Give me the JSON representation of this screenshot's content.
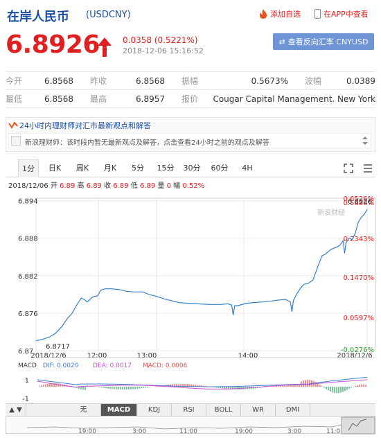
{
  "header": {
    "title": "在岸人民币",
    "code": "(USDCNY)",
    "add_watchlist": "添加自选",
    "open_in_app": "在APP中查看"
  },
  "quote": {
    "price": "6.8926",
    "change": "0.0358 (0.5221%)",
    "time": "2018-12-06 15:16:52",
    "reverse_button": "查看反向汇率 CNYUSD"
  },
  "info": {
    "rows": [
      [
        {
          "label": "今开",
          "value": "6.8568"
        },
        {
          "label": "昨收",
          "value": "6.8568"
        },
        {
          "label": "振幅",
          "value": "0.5673%"
        },
        {
          "label": "波幅",
          "value": "0.0389"
        }
      ],
      [
        {
          "label": "最低",
          "value": "6.8568"
        },
        {
          "label": "最高",
          "value": "6.8957"
        },
        {
          "label": "报价",
          "value": "Cougar Capital Management. New York"
        }
      ]
    ]
  },
  "opinion": {
    "title": "24小时内理财师对汇市最新观点和解答",
    "text": "新浪理财师：该时段内暂无最新观点及解答，点击查看24小时之前的观点及解答"
  },
  "tabs": [
    "1分",
    "日K",
    "周K",
    "月K",
    "5分",
    "15分",
    "30分",
    "60分",
    "4H"
  ],
  "active_tab": "1分",
  "meta": {
    "date": "2018/12/06",
    "open_label": "开",
    "open": "6.89",
    "high_label": "高",
    "high": "6.89",
    "close_label": "收",
    "close": "6.89",
    "low_label": "低",
    "low": "6.89",
    "vol_label": "量",
    "vol": "0",
    "amp_label": "幅",
    "amp": "0.52%"
  },
  "chart_data": {
    "type": "line",
    "y_ticks": [
      "6.894",
      "6.888",
      "6.882",
      "6.876",
      "6.87"
    ],
    "y_tick_values": [
      6.894,
      6.888,
      6.882,
      6.876,
      6.87
    ],
    "right_ticks": [
      "0.6526%",
      "0.5686%",
      "0.2343%",
      "0.1470%",
      "0.0597%",
      "-0.0276%"
    ],
    "right_tick_values": [
      0.6526,
      0.5686,
      0.2343,
      0.147,
      0.0597,
      -0.0276
    ],
    "x_ticks": [
      "2018/12/6",
      "12:00",
      "13:00",
      "14:00",
      "2018/12/6"
    ],
    "last_value_label": "6.8926",
    "low_label": "6.8717",
    "watermark": "新浪财经",
    "ylim": [
      6.87,
      6.8944
    ],
    "series": [
      {
        "points": [
          [
            0,
            6.8716
          ],
          [
            8,
            6.8718
          ],
          [
            18,
            6.8722
          ],
          [
            26,
            6.8728
          ],
          [
            34,
            6.8738
          ],
          [
            42,
            6.8752
          ],
          [
            48,
            6.876
          ],
          [
            54,
            6.8773
          ],
          [
            60,
            6.8784
          ],
          [
            64,
            6.8782
          ],
          [
            68,
            6.8778
          ],
          [
            74,
            6.8785
          ],
          [
            78,
            6.8787
          ],
          [
            82,
            6.8788
          ],
          [
            86,
            6.8797
          ],
          [
            92,
            6.8799
          ],
          [
            100,
            6.8799
          ],
          [
            110,
            6.8798
          ],
          [
            120,
            6.8795
          ],
          [
            130,
            6.8794
          ],
          [
            142,
            6.8794
          ],
          [
            150,
            6.879
          ],
          [
            160,
            6.8787
          ],
          [
            170,
            6.8783
          ],
          [
            180,
            6.878
          ],
          [
            190,
            6.8777
          ],
          [
            200,
            6.8776
          ],
          [
            215,
            6.8775
          ],
          [
            230,
            6.8774
          ],
          [
            245,
            6.8774
          ],
          [
            255,
            6.8775
          ],
          [
            260,
            6.8773
          ],
          [
            262,
            6.8757
          ],
          [
            264,
            6.8772
          ],
          [
            268,
            6.8772
          ],
          [
            280,
            6.8776
          ],
          [
            290,
            6.8777
          ],
          [
            300,
            6.8778
          ],
          [
            310,
            6.8779
          ],
          [
            322,
            6.8781
          ],
          [
            332,
            6.8782
          ],
          [
            338,
            6.8778
          ],
          [
            340,
            6.8762
          ],
          [
            342,
            6.878
          ],
          [
            346,
            6.879
          ],
          [
            352,
            6.8801
          ],
          [
            356,
            6.8806
          ],
          [
            362,
            6.8808
          ],
          [
            368,
            6.8813
          ],
          [
            374,
            6.8833
          ],
          [
            380,
            6.8852
          ],
          [
            384,
            6.8854
          ],
          [
            388,
            6.8858
          ],
          [
            392,
            6.8862
          ],
          [
            396,
            6.8864
          ],
          [
            400,
            6.8866
          ],
          [
            404,
            6.8869
          ],
          [
            408,
            6.8876
          ],
          [
            410,
            6.8856
          ],
          [
            412,
            6.8873
          ],
          [
            416,
            6.888
          ],
          [
            420,
            6.8878
          ],
          [
            424,
            6.8887
          ],
          [
            428,
            6.8905
          ],
          [
            432,
            6.8913
          ],
          [
            436,
            6.8918
          ],
          [
            440,
            6.8926
          ]
        ]
      }
    ]
  },
  "macd": {
    "label": "MACD",
    "dif": "DIF: 0.0020",
    "dea": "DEA: 0.0017",
    "macd": "MACD: 0.0006",
    "y_ticks": [
      "1",
      "-1"
    ],
    "colors": {
      "dif": "#3c7dd0",
      "dea": "#c84fd6",
      "macd": "#e04a4a"
    }
  },
  "indicator_tabs": [
    "无",
    "MACD",
    "KDJ",
    "RSI",
    "BOLL",
    "WR",
    "DMI"
  ],
  "active_indicator": "MACD",
  "navigator": {
    "labels": [
      "19:00",
      "3:00",
      "11:00",
      "19:00",
      "3:00",
      "11:0"
    ]
  },
  "colors": {
    "up": "#e02020",
    "line": "#3580c8",
    "brand": "#1a4fa0",
    "button": "#6e94d6"
  }
}
